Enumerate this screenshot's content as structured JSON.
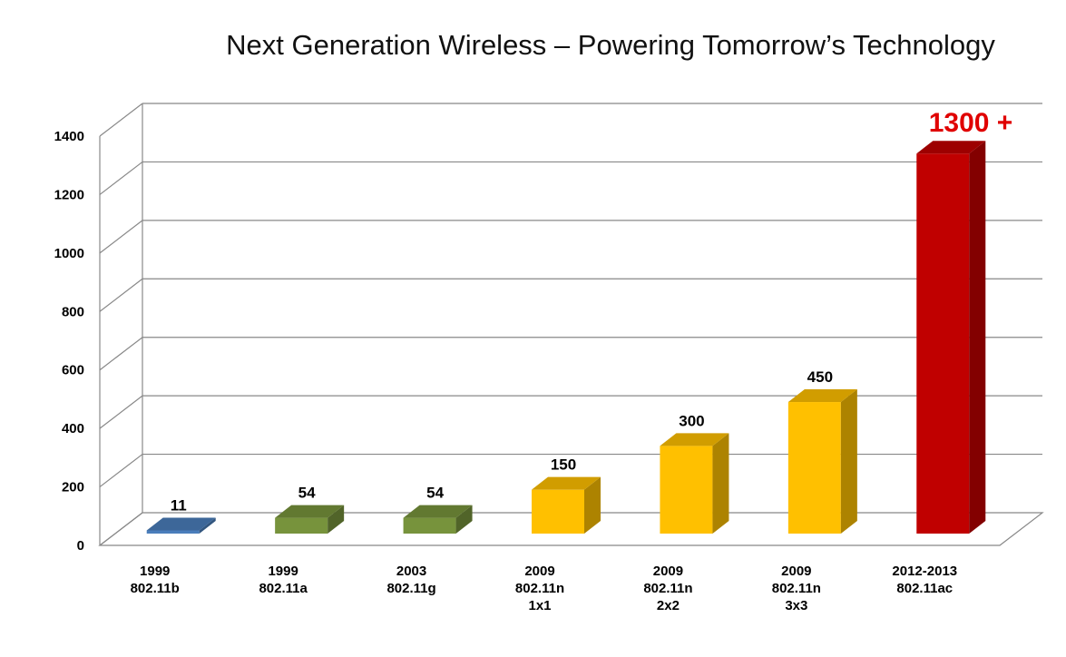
{
  "chart_data": {
    "type": "bar",
    "title": "Next Generation Wireless – Powering Tomorrow’s Technology",
    "categories": [
      [
        "1999",
        "802.11b"
      ],
      [
        "1999",
        "802.11a"
      ],
      [
        "2003",
        "802.11g"
      ],
      [
        "2009",
        "802.11n",
        "1x1"
      ],
      [
        "2009",
        "802.11n",
        "2x2"
      ],
      [
        "2009",
        "802.11n",
        "3x3"
      ],
      [
        "2012-2013",
        "802.11ac"
      ]
    ],
    "values": [
      11,
      54,
      54,
      150,
      300,
      450,
      1300
    ],
    "data_labels": [
      "11",
      "54",
      "54",
      "150",
      "300",
      "450",
      ""
    ],
    "annotation": {
      "text": "1300 +",
      "color": "#e00000"
    },
    "ylim": [
      0,
      1400
    ],
    "yticks": [
      0,
      200,
      400,
      600,
      800,
      1000,
      1200,
      1400
    ],
    "grid": true,
    "style": "3d-column",
    "bar_colors": [
      "#4a7ebb",
      "#77933c",
      "#77933c",
      "#ffc000",
      "#ffc000",
      "#ffc000",
      "#c00000"
    ]
  }
}
